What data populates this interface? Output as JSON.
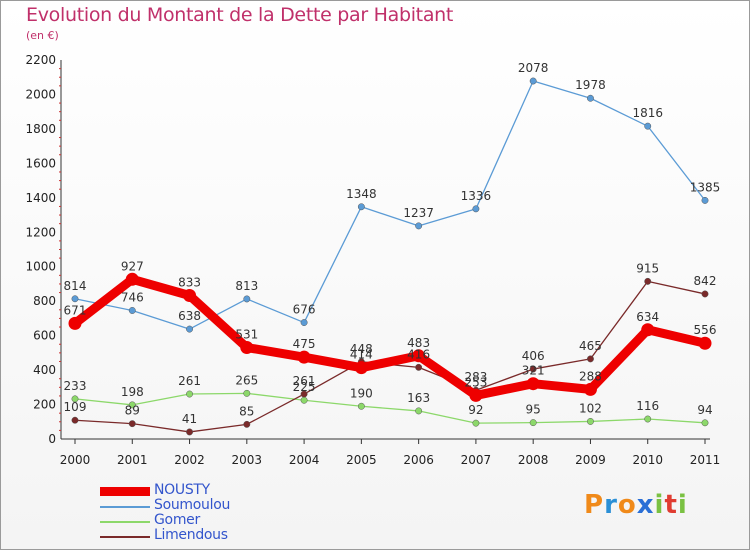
{
  "title": "Evolution du Montant de la Dette par Habitant",
  "subtitle": "(en €)",
  "logo": "Proxiti",
  "chart_data": {
    "type": "line",
    "title": "Evolution du Montant de la Dette par Habitant",
    "ylabel": "(en €)",
    "xlabel": "",
    "x": [
      "2000",
      "2001",
      "2002",
      "2003",
      "2004",
      "2005",
      "2006",
      "2007",
      "2008",
      "2009",
      "2010",
      "2011"
    ],
    "ylim": [
      0,
      2200
    ],
    "yticks": [
      "0",
      "200",
      "400",
      "600",
      "800",
      "1000",
      "1200",
      "1400",
      "1600",
      "1800",
      "2000",
      "2200"
    ],
    "grid": false,
    "legend_position": "bottom-left",
    "series": [
      {
        "name": "NOUSTY",
        "color": "#ee0000",
        "values": [
          671,
          927,
          833,
          531,
          475,
          414,
          483,
          253,
          321,
          288,
          634,
          556
        ],
        "labels": [
          "671",
          "927",
          "833",
          "531",
          "475",
          "414",
          "483",
          "253",
          "321",
          "288",
          "634",
          "556"
        ]
      },
      {
        "name": "Soumoulou",
        "color": "#5b9bd5",
        "values": [
          814,
          746,
          638,
          813,
          676,
          1348,
          1237,
          1336,
          2078,
          1978,
          1816,
          1385
        ],
        "labels": [
          "814",
          "746",
          "638",
          "813",
          "676",
          "1348",
          "1237",
          "1336",
          "2078",
          "1978",
          "1816",
          "1385"
        ]
      },
      {
        "name": "Gomer",
        "color": "#8cd86a",
        "values": [
          233,
          198,
          261,
          265,
          225,
          190,
          163,
          92,
          95,
          102,
          116,
          94
        ],
        "labels": [
          "233",
          "198",
          "261",
          "265",
          "225",
          "190",
          "163",
          "92",
          "95",
          "102",
          "116",
          "94"
        ]
      },
      {
        "name": "Limendous",
        "color": "#7a2a2a",
        "values": [
          109,
          89,
          41,
          85,
          261,
          448,
          416,
          283,
          406,
          465,
          915,
          842
        ],
        "labels": [
          "109",
          "89",
          "41",
          "85",
          "261",
          "448",
          "416",
          "283",
          "406",
          "465",
          "915",
          "842"
        ]
      }
    ]
  }
}
